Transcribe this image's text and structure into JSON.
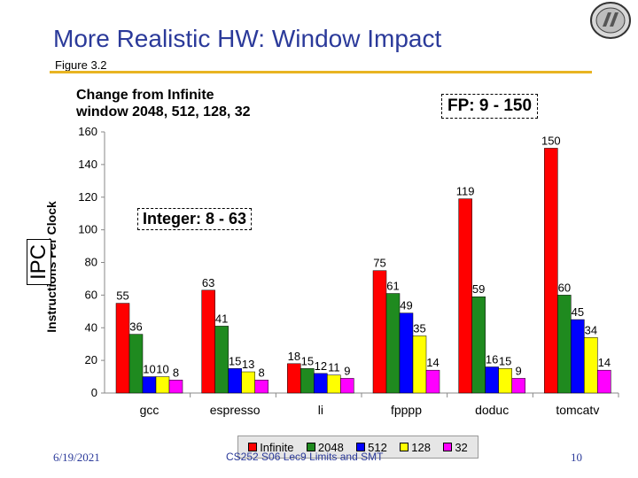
{
  "slide": {
    "title": "More Realistic HW: Window Impact",
    "subtitle": "Figure 3.2",
    "caption_line1": "Change from Infinite",
    "caption_line2": "window 2048, 512, 128, 32",
    "fp_label": "FP: 9 - 150",
    "int_label": "Integer: 8 - 63",
    "ipc_label": "IPC"
  },
  "footer": {
    "date": "6/19/2021",
    "center": "CS252 S06 Lec9 Limits and SMT",
    "page": "10"
  },
  "chart_data": {
    "type": "bar",
    "ylabel": "Instructions Per Clock",
    "ylim": [
      0,
      160
    ],
    "yticks": [
      0,
      20,
      40,
      60,
      80,
      100,
      120,
      140,
      160
    ],
    "grid": false,
    "legend_position": "bottom",
    "categories": [
      "gcc",
      "espresso",
      "li",
      "fpppp",
      "doduc",
      "tomcatv"
    ],
    "series": [
      {
        "name": "Infinite",
        "color": "#ff0000",
        "values": [
          55,
          63,
          18,
          75,
          119,
          150
        ]
      },
      {
        "name": "2048",
        "color": "#1f8a1f",
        "values": [
          36,
          41,
          15,
          61,
          59,
          60
        ]
      },
      {
        "name": "512",
        "color": "#0000ff",
        "values": [
          10,
          15,
          12,
          49,
          16,
          45
        ]
      },
      {
        "name": "128",
        "color": "#ffff00",
        "values": [
          10,
          13,
          11,
          35,
          15,
          34
        ]
      },
      {
        "name": "32",
        "color": "#ff00ff",
        "values": [
          8,
          8,
          9,
          14,
          9,
          14
        ]
      }
    ]
  }
}
